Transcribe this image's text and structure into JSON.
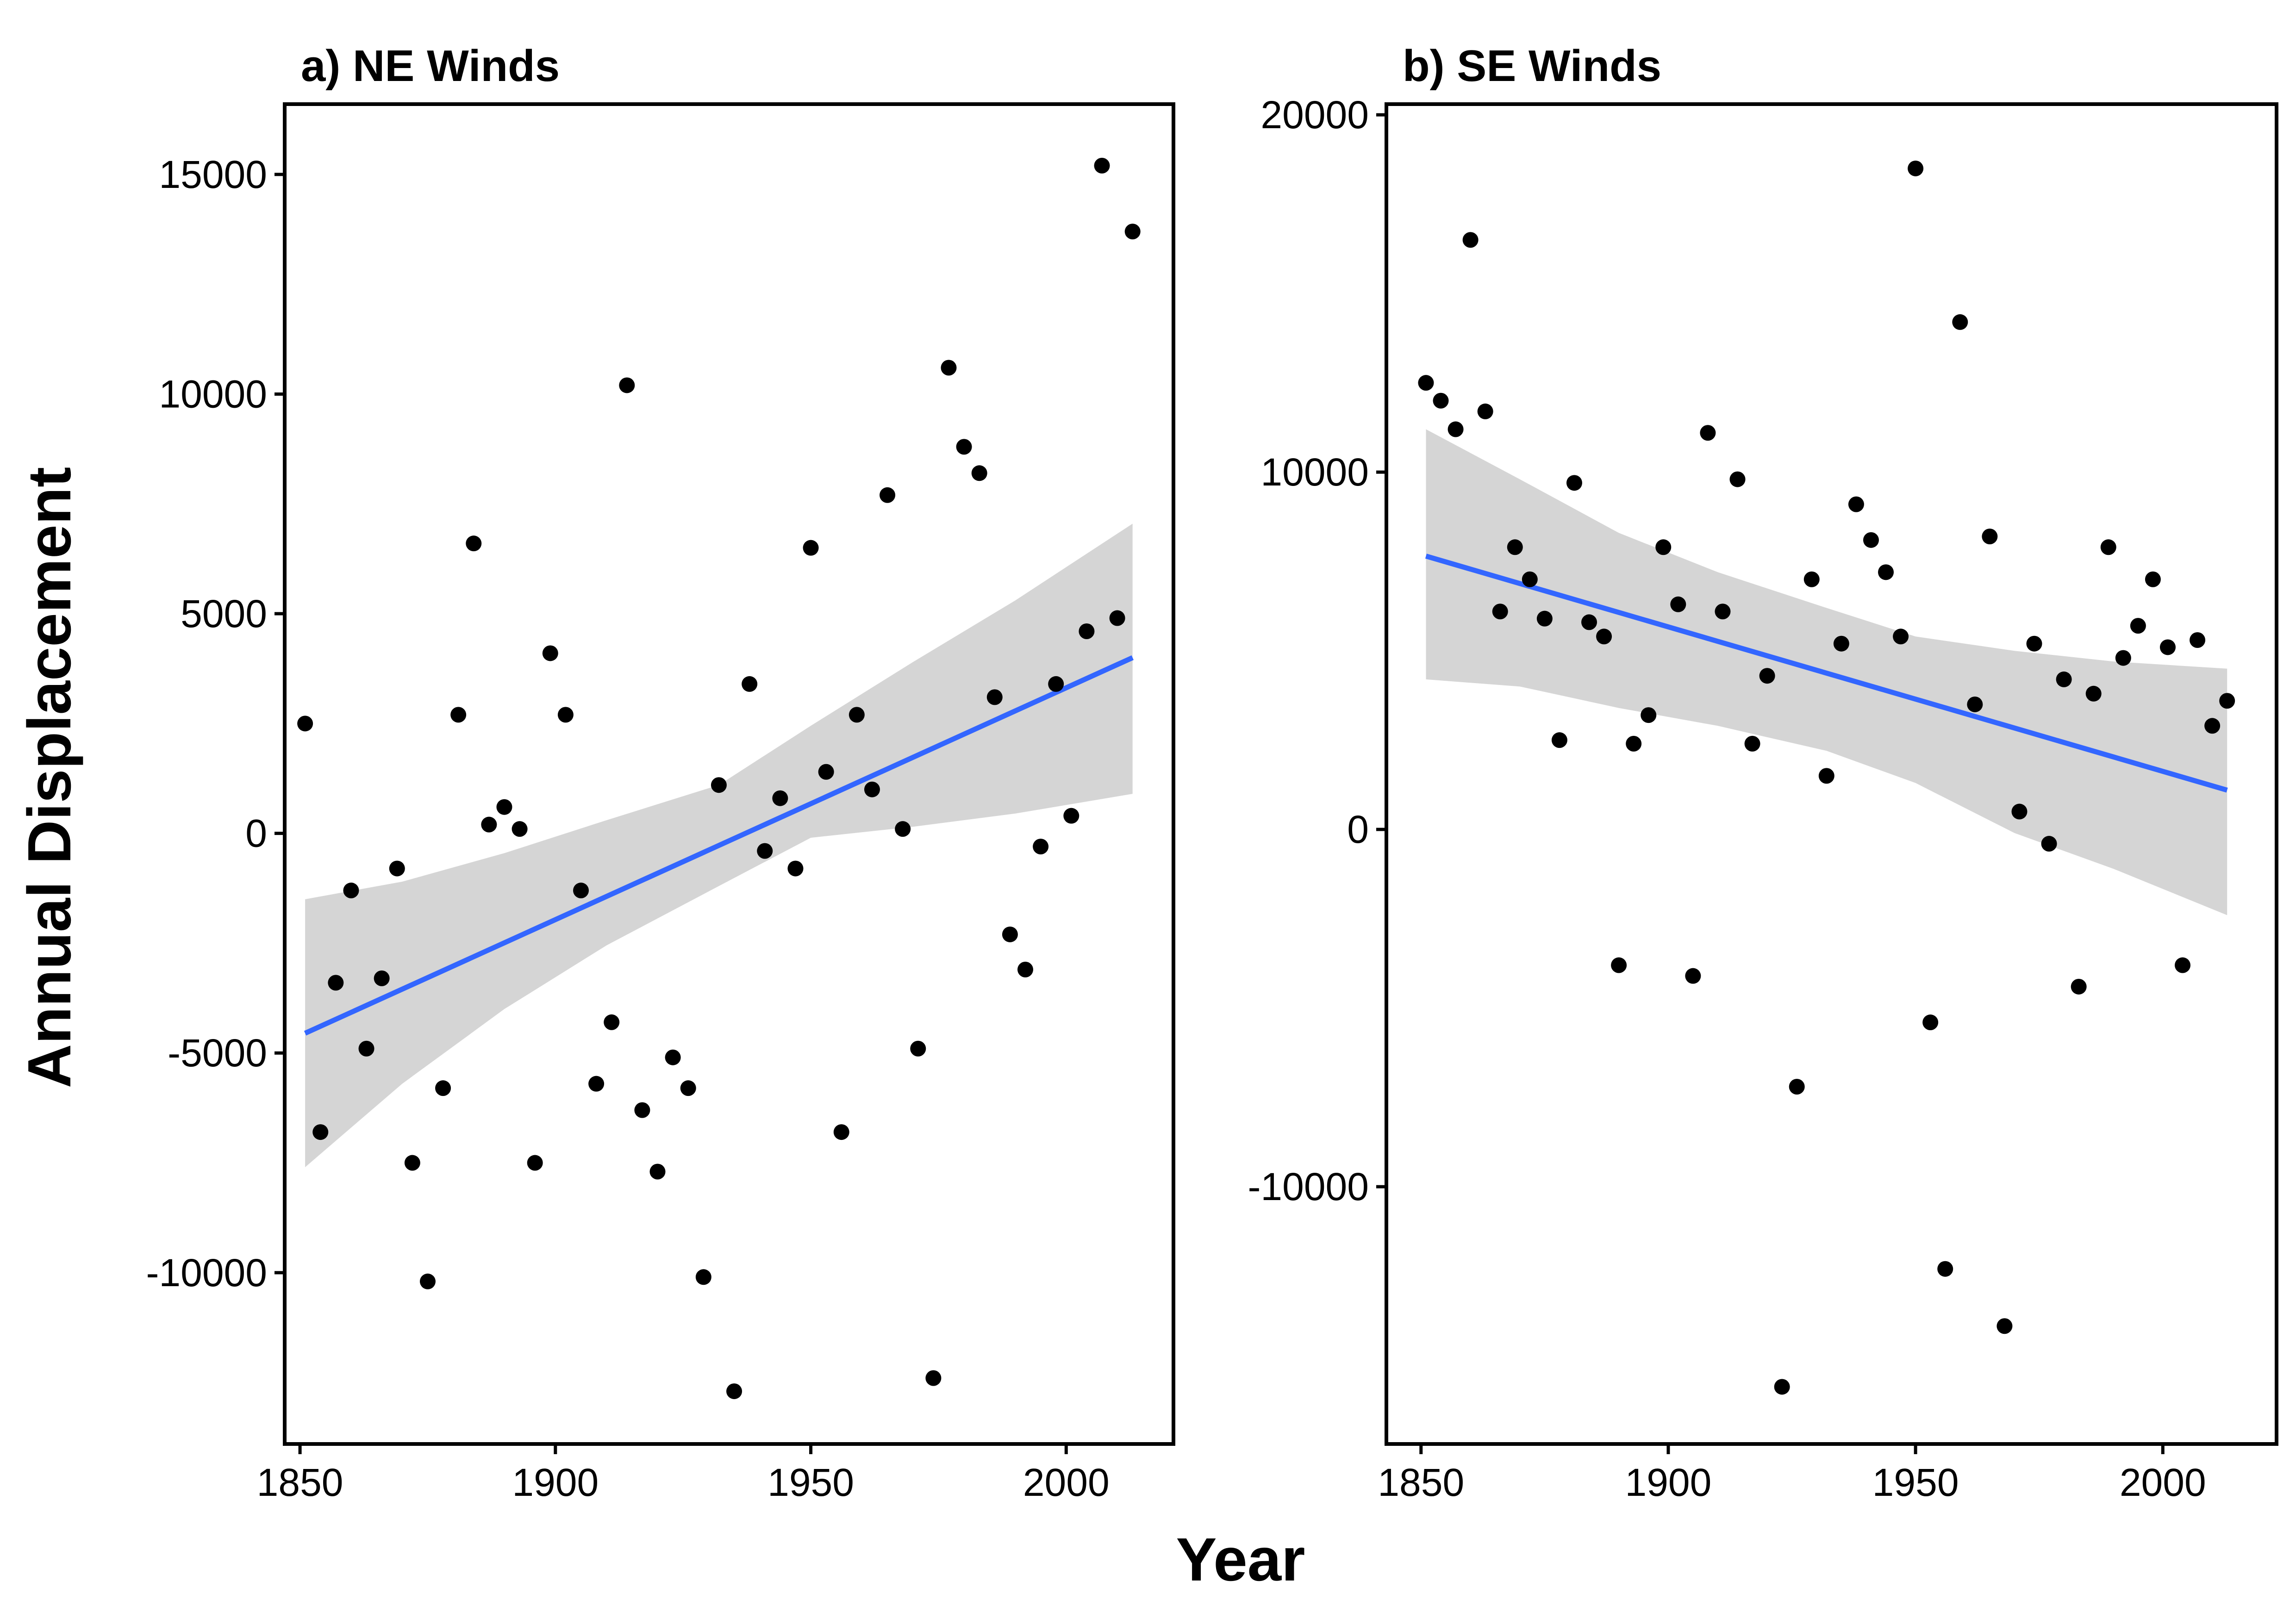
{
  "figure": {
    "xlabel": "Year",
    "ylabel": "Annual Displacement"
  },
  "colors": {
    "points": "#000000",
    "trend_line": "#3366FF",
    "confidence_band": "#D3D3D3",
    "axes": "#000000"
  },
  "chart_data": [
    {
      "type": "scatter",
      "title": "a) NE Winds",
      "xlim": [
        1847,
        2021
      ],
      "ylim": [
        -13900,
        16600
      ],
      "xticks": [
        1850,
        1900,
        1950,
        2000
      ],
      "xtick_labels": [
        "1850",
        "1900",
        "1950",
        "2000"
      ],
      "yticks": [
        -10000,
        -5000,
        0,
        5000,
        10000,
        15000
      ],
      "ytick_labels": [
        "-10000",
        "-5000",
        "0",
        "5000",
        "10000",
        "15000"
      ],
      "x": [
        1851,
        1854,
        1857,
        1860,
        1863,
        1866,
        1869,
        1872,
        1875,
        1878,
        1881,
        1884,
        1887,
        1890,
        1893,
        1896,
        1899,
        1902,
        1905,
        1908,
        1911,
        1914,
        1917,
        1920,
        1923,
        1926,
        1929,
        1932,
        1935,
        1938,
        1941,
        1944,
        1947,
        1950,
        1953,
        1956,
        1959,
        1962,
        1965,
        1968,
        1971,
        1974,
        1977,
        1980,
        1983,
        1986,
        1989,
        1992,
        1995,
        1998,
        2001,
        2004,
        2007,
        2010,
        2013
      ],
      "y": [
        2500,
        -6800,
        -3400,
        -1300,
        -4900,
        -3300,
        -800,
        -7500,
        -10200,
        -5800,
        2700,
        6600,
        200,
        600,
        100,
        -7500,
        4100,
        2700,
        -1300,
        -5700,
        -4300,
        10200,
        -6300,
        -7700,
        -5100,
        -5800,
        -10100,
        1100,
        -12700,
        3400,
        -400,
        800,
        -800,
        6500,
        1400,
        -6800,
        2700,
        1000,
        7700,
        100,
        -4900,
        -12400,
        10600,
        8800,
        8200,
        3100,
        -2300,
        -3100,
        -300,
        3400,
        400,
        4600,
        15200,
        4900,
        13700
      ],
      "trend": {
        "x": [
          1851,
          2013
        ],
        "y": [
          -4550,
          4000
        ]
      },
      "band": {
        "x": [
          1851,
          1870,
          1890,
          1910,
          1932,
          1950,
          1970,
          1990,
          2013
        ],
        "lower": [
          -7600,
          -5700,
          -4000,
          -2550,
          -1200,
          -100,
          150,
          450,
          900
        ],
        "upper": [
          -1500,
          -1100,
          -450,
          300,
          1100,
          2450,
          3900,
          5300,
          7050
        ]
      }
    },
    {
      "type": "scatter",
      "title": "b) SE Winds",
      "xlim": [
        1843,
        2023
      ],
      "ylim": [
        -17200,
        20300
      ],
      "xticks": [
        1850,
        1900,
        1950,
        2000
      ],
      "xtick_labels": [
        "1850",
        "1900",
        "1950",
        "2000"
      ],
      "yticks": [
        -10000,
        0,
        10000,
        20000
      ],
      "ytick_labels": [
        "-10000",
        "0",
        "10000",
        "20000"
      ],
      "x": [
        1851,
        1854,
        1857,
        1860,
        1863,
        1866,
        1869,
        1872,
        1875,
        1878,
        1881,
        1884,
        1887,
        1890,
        1893,
        1896,
        1899,
        1902,
        1905,
        1908,
        1911,
        1914,
        1917,
        1920,
        1923,
        1926,
        1929,
        1932,
        1935,
        1938,
        1941,
        1944,
        1947,
        1950,
        1953,
        1956,
        1959,
        1962,
        1965,
        1968,
        1971,
        1974,
        1977,
        1980,
        1983,
        1986,
        1989,
        1992,
        1995,
        1998,
        2001,
        2004,
        2007,
        2010,
        2013
      ],
      "y": [
        12500,
        12000,
        11200,
        16500,
        11700,
        6100,
        7900,
        7000,
        5900,
        2500,
        9700,
        5800,
        5400,
        -3800,
        2400,
        3200,
        7900,
        6300,
        -4100,
        11100,
        6100,
        9800,
        2400,
        4300,
        -15600,
        -7200,
        7000,
        1500,
        5200,
        9100,
        8100,
        7200,
        5400,
        18500,
        -5400,
        -12300,
        14200,
        3500,
        8200,
        -13900,
        500,
        5200,
        -400,
        4200,
        -4400,
        3800,
        7900,
        4800,
        5700,
        7000,
        5100,
        -3800,
        5300,
        2900,
        3600
      ],
      "trend": {
        "x": [
          1851,
          2013
        ],
        "y": [
          7650,
          1100
        ]
      },
      "band": {
        "x": [
          1851,
          1870,
          1890,
          1910,
          1932,
          1950,
          1970,
          1990,
          2013
        ],
        "lower": [
          4200,
          4000,
          3400,
          2900,
          2200,
          1300,
          -100,
          -1100,
          -2400
        ],
        "upper": [
          11200,
          9800,
          8300,
          7200,
          6200,
          5400,
          5000,
          4700,
          4500
        ]
      }
    }
  ]
}
